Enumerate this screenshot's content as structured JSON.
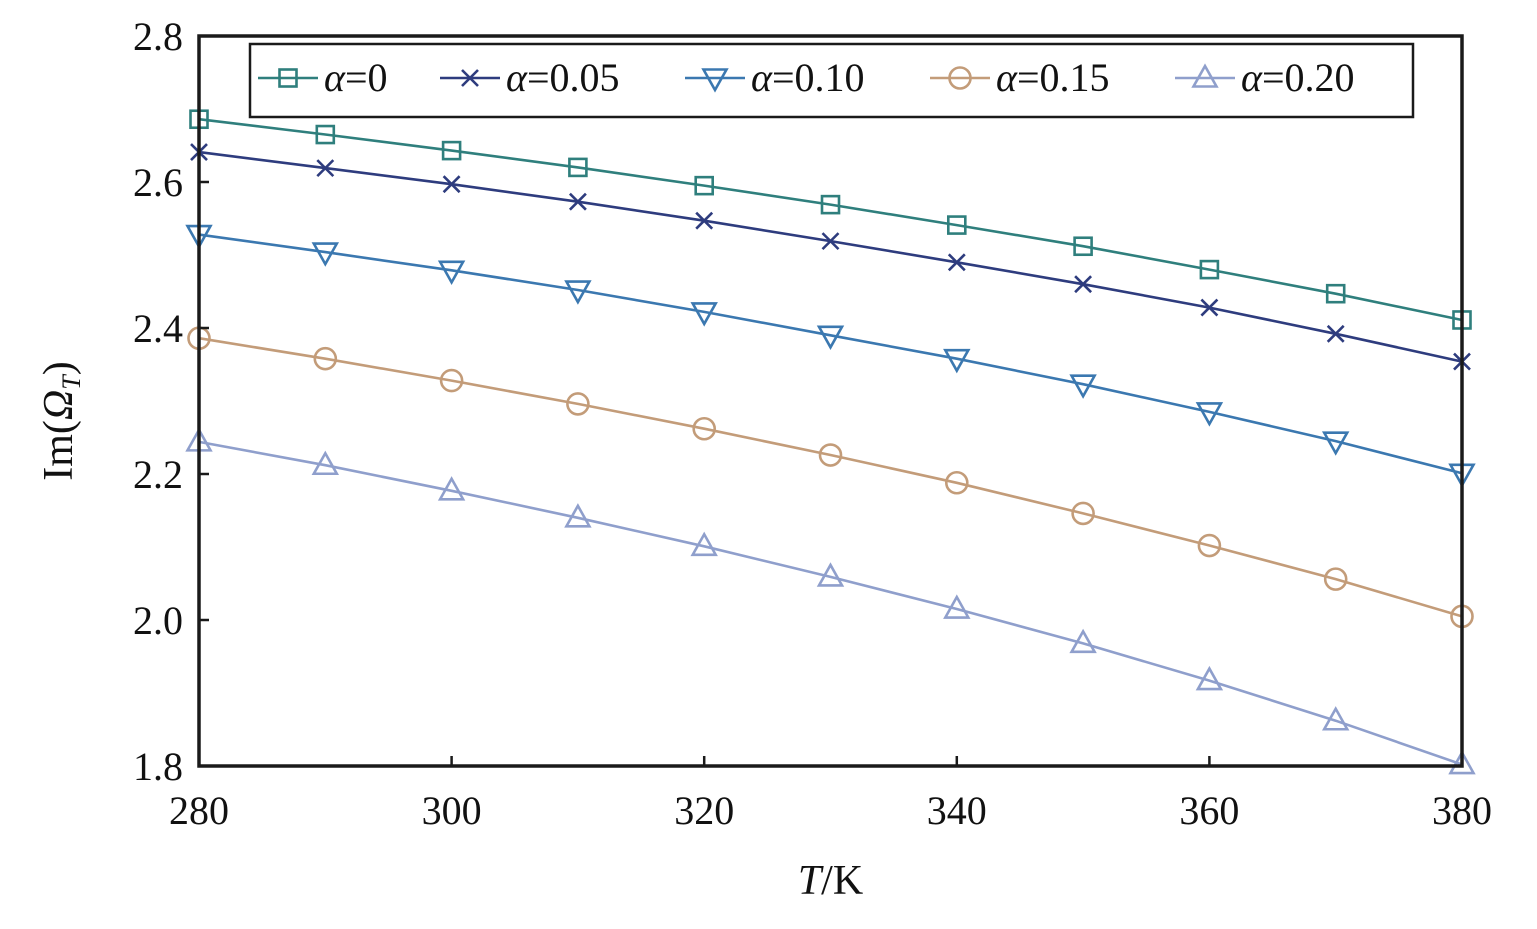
{
  "chart_data": {
    "type": "line",
    "xlabel": {
      "italic": "T",
      "rest": "/K"
    },
    "ylabel": {
      "prefix": "Im(",
      "symbol": "Ω",
      "subscript": "T",
      "suffix": ")"
    },
    "xlim": [
      280,
      380
    ],
    "ylim": [
      1.8,
      2.8
    ],
    "x_ticks": [
      "280",
      "300",
      "320",
      "340",
      "360",
      "380"
    ],
    "y_ticks": [
      "1.8",
      "2.0",
      "2.2",
      "2.4",
      "2.6",
      "2.8"
    ],
    "grid": false,
    "legend_position": "top",
    "x": [
      280,
      290,
      300,
      310,
      320,
      330,
      340,
      350,
      360,
      370,
      380
    ],
    "series": [
      {
        "name": "α=0",
        "symbol": "α",
        "value": "=0",
        "marker": "square",
        "color": "#2f7f7d",
        "values": [
          2.686,
          2.665,
          2.643,
          2.62,
          2.595,
          2.569,
          2.541,
          2.512,
          2.48,
          2.447,
          2.411
        ]
      },
      {
        "name": "α=0.05",
        "symbol": "α",
        "value": "=0.05",
        "marker": "x",
        "color": "#2e3c7e",
        "values": [
          2.641,
          2.619,
          2.597,
          2.573,
          2.547,
          2.519,
          2.49,
          2.46,
          2.428,
          2.392,
          2.354
        ]
      },
      {
        "name": "α=0.10",
        "symbol": "α",
        "value": "=0.10",
        "marker": "triangle-down",
        "color": "#3b78b0",
        "values": [
          2.528,
          2.504,
          2.479,
          2.452,
          2.422,
          2.39,
          2.358,
          2.323,
          2.285,
          2.245,
          2.201
        ]
      },
      {
        "name": "α=0.15",
        "symbol": "α",
        "value": "=0.15",
        "marker": "circle",
        "color": "#c39c79",
        "values": [
          2.386,
          2.358,
          2.328,
          2.296,
          2.262,
          2.226,
          2.188,
          2.146,
          2.102,
          2.056,
          2.005
        ]
      },
      {
        "name": "α=0.20",
        "symbol": "α",
        "value": "=0.20",
        "marker": "triangle-up",
        "color": "#8f9fcc",
        "values": [
          2.244,
          2.212,
          2.177,
          2.14,
          2.101,
          2.059,
          2.015,
          1.968,
          1.917,
          1.862,
          1.802
        ]
      }
    ]
  }
}
